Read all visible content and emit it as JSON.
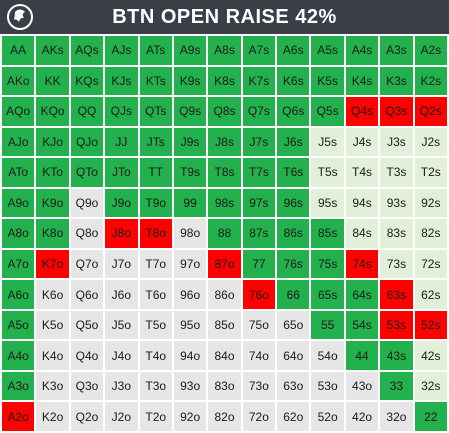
{
  "title": "BTN OPEN RAISE 42%",
  "colors": {
    "raise": "#22b14c",
    "light": "#e2f0d9",
    "fold": "#e6e6e6",
    "red": "#ff0000",
    "title_bg": "#3a3f47"
  },
  "chart_data": {
    "type": "heatmap",
    "title": "BTN OPEN RAISE 42%",
    "legend": {
      "R": "raise",
      "L": "light",
      "F": "fold",
      "X": "red"
    },
    "rows": [
      [
        [
          "AA",
          "R"
        ],
        [
          "AKs",
          "R"
        ],
        [
          "AQs",
          "R"
        ],
        [
          "AJs",
          "R"
        ],
        [
          "ATs",
          "R"
        ],
        [
          "A9s",
          "R"
        ],
        [
          "A8s",
          "R"
        ],
        [
          "A7s",
          "R"
        ],
        [
          "A6s",
          "R"
        ],
        [
          "A5s",
          "R"
        ],
        [
          "A4s",
          "R"
        ],
        [
          "A3s",
          "R"
        ],
        [
          "A2s",
          "R"
        ]
      ],
      [
        [
          "AKo",
          "R"
        ],
        [
          "KK",
          "R"
        ],
        [
          "KQs",
          "R"
        ],
        [
          "KJs",
          "R"
        ],
        [
          "KTs",
          "R"
        ],
        [
          "K9s",
          "R"
        ],
        [
          "K8s",
          "R"
        ],
        [
          "K7s",
          "R"
        ],
        [
          "K6s",
          "R"
        ],
        [
          "K5s",
          "R"
        ],
        [
          "K4s",
          "R"
        ],
        [
          "K3s",
          "R"
        ],
        [
          "K2s",
          "R"
        ]
      ],
      [
        [
          "AQo",
          "R"
        ],
        [
          "KQo",
          "R"
        ],
        [
          "QQ",
          "R"
        ],
        [
          "QJs",
          "R"
        ],
        [
          "QTs",
          "R"
        ],
        [
          "Q9s",
          "R"
        ],
        [
          "Q8s",
          "R"
        ],
        [
          "Q7s",
          "R"
        ],
        [
          "Q6s",
          "R"
        ],
        [
          "Q5s",
          "R"
        ],
        [
          "Q4s",
          "X"
        ],
        [
          "Q3s",
          "X"
        ],
        [
          "Q2s",
          "X"
        ]
      ],
      [
        [
          "AJo",
          "R"
        ],
        [
          "KJo",
          "R"
        ],
        [
          "QJo",
          "R"
        ],
        [
          "JJ",
          "R"
        ],
        [
          "JTs",
          "R"
        ],
        [
          "J9s",
          "R"
        ],
        [
          "J8s",
          "R"
        ],
        [
          "J7s",
          "R"
        ],
        [
          "J6s",
          "R"
        ],
        [
          "J5s",
          "L"
        ],
        [
          "J4s",
          "L"
        ],
        [
          "J3s",
          "L"
        ],
        [
          "J2s",
          "L"
        ]
      ],
      [
        [
          "ATo",
          "R"
        ],
        [
          "KTo",
          "R"
        ],
        [
          "QTo",
          "R"
        ],
        [
          "JTo",
          "R"
        ],
        [
          "TT",
          "R"
        ],
        [
          "T9s",
          "R"
        ],
        [
          "T8s",
          "R"
        ],
        [
          "T7s",
          "R"
        ],
        [
          "T6s",
          "R"
        ],
        [
          "T5s",
          "L"
        ],
        [
          "T4s",
          "L"
        ],
        [
          "T3s",
          "L"
        ],
        [
          "T2s",
          "L"
        ]
      ],
      [
        [
          "A9o",
          "R"
        ],
        [
          "K9o",
          "R"
        ],
        [
          "Q9o",
          "F"
        ],
        [
          "J9o",
          "R"
        ],
        [
          "T9o",
          "R"
        ],
        [
          "99",
          "R"
        ],
        [
          "98s",
          "R"
        ],
        [
          "97s",
          "R"
        ],
        [
          "96s",
          "R"
        ],
        [
          "95s",
          "L"
        ],
        [
          "94s",
          "L"
        ],
        [
          "93s",
          "L"
        ],
        [
          "92s",
          "L"
        ]
      ],
      [
        [
          "A8o",
          "R"
        ],
        [
          "K8o",
          "R"
        ],
        [
          "Q8o",
          "F"
        ],
        [
          "J8o",
          "X"
        ],
        [
          "T8o",
          "X"
        ],
        [
          "98o",
          "F"
        ],
        [
          "88",
          "R"
        ],
        [
          "87s",
          "R"
        ],
        [
          "86s",
          "R"
        ],
        [
          "85s",
          "R"
        ],
        [
          "84s",
          "L"
        ],
        [
          "83s",
          "L"
        ],
        [
          "82s",
          "L"
        ]
      ],
      [
        [
          "A7o",
          "R"
        ],
        [
          "K7o",
          "X"
        ],
        [
          "Q7o",
          "F"
        ],
        [
          "J7o",
          "F"
        ],
        [
          "T7o",
          "F"
        ],
        [
          "97o",
          "F"
        ],
        [
          "87o",
          "X"
        ],
        [
          "77",
          "R"
        ],
        [
          "76s",
          "R"
        ],
        [
          "75s",
          "R"
        ],
        [
          "74s",
          "X"
        ],
        [
          "73s",
          "L"
        ],
        [
          "72s",
          "L"
        ]
      ],
      [
        [
          "A6o",
          "R"
        ],
        [
          "K6o",
          "F"
        ],
        [
          "Q6o",
          "F"
        ],
        [
          "J6o",
          "F"
        ],
        [
          "T6o",
          "F"
        ],
        [
          "96o",
          "F"
        ],
        [
          "86o",
          "F"
        ],
        [
          "76o",
          "X"
        ],
        [
          "66",
          "R"
        ],
        [
          "65s",
          "R"
        ],
        [
          "64s",
          "R"
        ],
        [
          "63s",
          "X"
        ],
        [
          "62s",
          "L"
        ]
      ],
      [
        [
          "A5o",
          "R"
        ],
        [
          "K5o",
          "F"
        ],
        [
          "Q5o",
          "F"
        ],
        [
          "J5o",
          "F"
        ],
        [
          "T5o",
          "F"
        ],
        [
          "95o",
          "F"
        ],
        [
          "85o",
          "F"
        ],
        [
          "75o",
          "F"
        ],
        [
          "65o",
          "F"
        ],
        [
          "55",
          "R"
        ],
        [
          "54s",
          "R"
        ],
        [
          "53s",
          "X"
        ],
        [
          "52s",
          "X"
        ]
      ],
      [
        [
          "A4o",
          "R"
        ],
        [
          "K4o",
          "F"
        ],
        [
          "Q4o",
          "F"
        ],
        [
          "J4o",
          "F"
        ],
        [
          "T4o",
          "F"
        ],
        [
          "94o",
          "F"
        ],
        [
          "84o",
          "F"
        ],
        [
          "74o",
          "F"
        ],
        [
          "64o",
          "F"
        ],
        [
          "54o",
          "F"
        ],
        [
          "44",
          "R"
        ],
        [
          "43s",
          "R"
        ],
        [
          "42s",
          "L"
        ]
      ],
      [
        [
          "A3o",
          "R"
        ],
        [
          "K3o",
          "F"
        ],
        [
          "Q3o",
          "F"
        ],
        [
          "J3o",
          "F"
        ],
        [
          "T3o",
          "F"
        ],
        [
          "93o",
          "F"
        ],
        [
          "83o",
          "F"
        ],
        [
          "73o",
          "F"
        ],
        [
          "63o",
          "F"
        ],
        [
          "53o",
          "F"
        ],
        [
          "43o",
          "F"
        ],
        [
          "33",
          "R"
        ],
        [
          "32s",
          "L"
        ]
      ],
      [
        [
          "A2o",
          "X"
        ],
        [
          "K2o",
          "F"
        ],
        [
          "Q2o",
          "F"
        ],
        [
          "J2o",
          "F"
        ],
        [
          "T2o",
          "F"
        ],
        [
          "92o",
          "F"
        ],
        [
          "82o",
          "F"
        ],
        [
          "72o",
          "F"
        ],
        [
          "62o",
          "F"
        ],
        [
          "52o",
          "F"
        ],
        [
          "42o",
          "F"
        ],
        [
          "32o",
          "F"
        ],
        [
          "22",
          "R"
        ]
      ]
    ]
  }
}
